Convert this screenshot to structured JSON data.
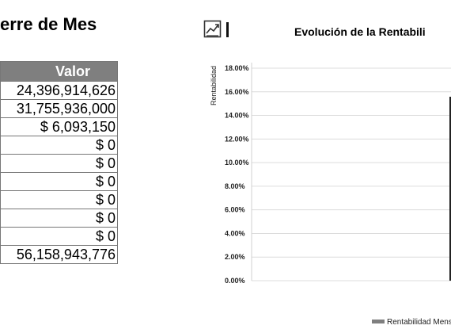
{
  "left_panel": {
    "title": "erre de Mes",
    "table": {
      "header": "Valor",
      "rows": [
        "24,396,914,626",
        "31,755,936,000",
        "$ 6,093,150",
        "$ 0",
        "$ 0",
        "$ 0",
        "$ 0",
        "$ 0",
        "$ 0",
        "56,158,943,776"
      ]
    }
  },
  "chart_toolbar": {
    "icon": "line-chart-icon"
  },
  "chart_data": {
    "type": "bar",
    "title": "Evolución de la Rentabili",
    "ylabel": "Rentabilidad",
    "y_ticks": [
      "0.00%",
      "2.00%",
      "4.00%",
      "6.00%",
      "8.00%",
      "10.00%",
      "12.00%",
      "14.00%",
      "16.00%",
      "18.00%"
    ],
    "ylim": [
      0,
      18
    ],
    "legend": "Rentabilidad Mens",
    "legend_placement": "bottom-right",
    "grid": true,
    "series_color": "#7f7f7f"
  }
}
